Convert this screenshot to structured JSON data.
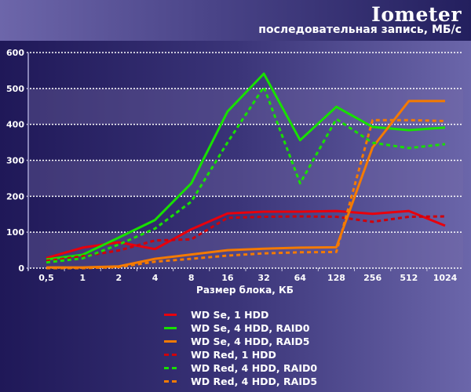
{
  "header": {
    "title": "Iometer",
    "subtitle": "последовательная запись, МБ/с"
  },
  "chart_data": {
    "type": "line",
    "title": "Iometer",
    "subtitle": "последовательная запись, МБ/с",
    "xlabel": "Размер блока, КБ",
    "ylabel": "",
    "ylim": [
      0,
      600
    ],
    "yticks": [
      0,
      100,
      200,
      300,
      400,
      500,
      600
    ],
    "grid": true,
    "legend_position": "bottom",
    "categories": [
      "0,5",
      "1",
      "2",
      "4",
      "8",
      "16",
      "32",
      "64",
      "128",
      "256",
      "512",
      "1024"
    ],
    "series": [
      {
        "name": "WD Se, 1 HDD",
        "color": "#e8000c",
        "style": "solid",
        "values": [
          28,
          57,
          72,
          53,
          108,
          152,
          157,
          157,
          159,
          151,
          159,
          118
        ]
      },
      {
        "name": "WD Se, 4 HDD, RAID0",
        "color": "#18e000",
        "style": "solid",
        "values": [
          24,
          37,
          85,
          134,
          236,
          436,
          541,
          356,
          449,
          393,
          384,
          391
        ]
      },
      {
        "name": "WD Se, 4 HDD, RAID5",
        "color": "#f47a00",
        "style": "solid",
        "values": [
          2,
          2,
          5,
          26,
          38,
          50,
          54,
          57,
          58,
          336,
          465,
          465
        ]
      },
      {
        "name": "WD Red, 1 HDD",
        "color": "#d0000a",
        "style": "dashed",
        "values": [
          20,
          33,
          49,
          77,
          80,
          140,
          143,
          144,
          143,
          129,
          143,
          144
        ]
      },
      {
        "name": "WD Red, 4 HDD, RAID0",
        "color": "#18e000",
        "style": "dashed",
        "values": [
          16,
          27,
          66,
          110,
          185,
          350,
          504,
          236,
          415,
          349,
          334,
          345
        ]
      },
      {
        "name": "WD Red, 4 HDD, RAID5",
        "color": "#f47a00",
        "style": "dashed",
        "values": [
          0,
          0,
          3,
          18,
          26,
          35,
          41,
          44,
          45,
          412,
          412,
          409
        ]
      }
    ]
  }
}
